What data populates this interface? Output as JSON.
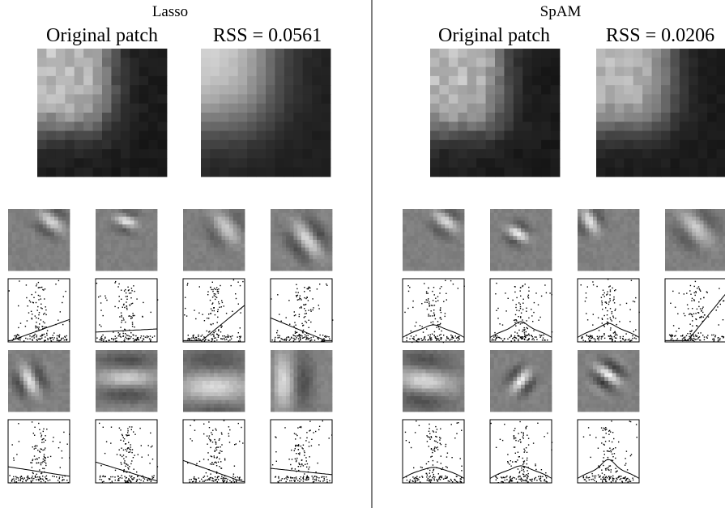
{
  "panels": [
    {
      "title": "Lasso",
      "original_label": "Original patch",
      "rss_label": "RSS = 0.0561"
    },
    {
      "title": "SpAM",
      "original_label": "Original patch",
      "rss_label": "RSS = 0.0206"
    }
  ]
}
